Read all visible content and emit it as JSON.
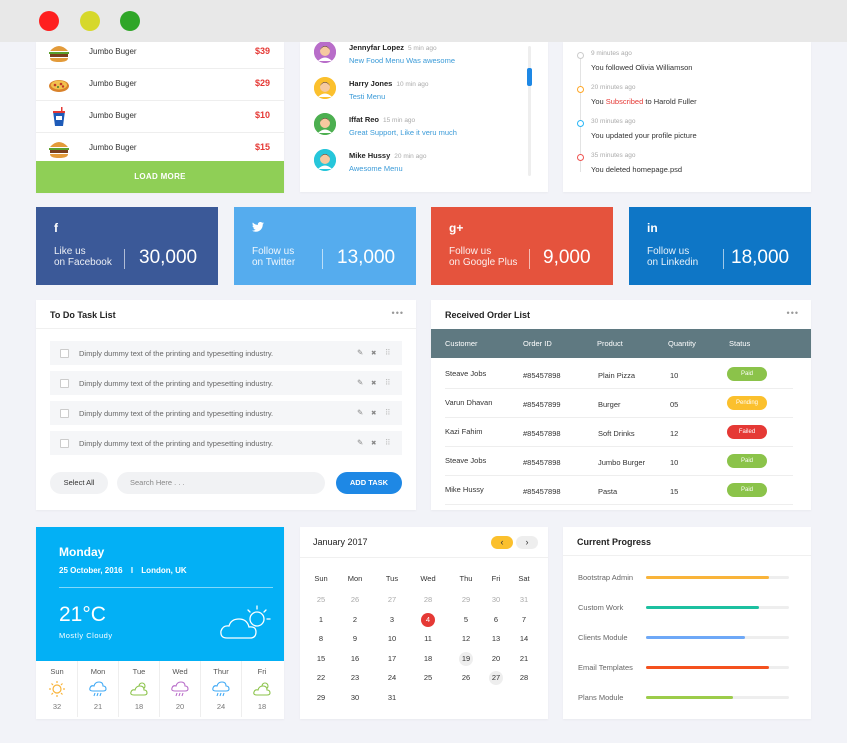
{
  "window": {
    "controls": [
      {
        "name": "close",
        "color": "#fe1f1f"
      },
      {
        "name": "minimize",
        "color": "#d6d82b"
      },
      {
        "name": "maximize",
        "color": "#2fa628"
      }
    ]
  },
  "food_list": {
    "items": [
      {
        "name": "Jumbo Buger",
        "price": "$39",
        "icon": "burger-icon"
      },
      {
        "name": "Jumbo Buger",
        "price": "$29",
        "icon": "pizza-icon"
      },
      {
        "name": "Jumbo Buger",
        "price": "$10",
        "icon": "soda-cup-icon"
      },
      {
        "name": "Jumbo Buger",
        "price": "$15",
        "icon": "burger-icon"
      }
    ],
    "load_more_label": "LOAD MORE",
    "accent": "#8fcf56"
  },
  "messages": [
    {
      "name": "Jennyfar Lopez",
      "time": "5 min ago",
      "text": "New Food Menu Was awesome",
      "avatar_color": "#b86dc9"
    },
    {
      "name": "Harry Jones",
      "time": "10 min ago",
      "text": "Testi Menu",
      "avatar_color": "#fbc02d"
    },
    {
      "name": "Iffat Reo",
      "time": "15 min ago",
      "text": "Great Support, Like it veru much",
      "avatar_color": "#4caf50"
    },
    {
      "name": "Mike Hussy",
      "time": "20 min ago",
      "text": "Awesome Menu",
      "avatar_color": "#26c6da"
    }
  ],
  "timeline": [
    {
      "time": "9 minutes ago",
      "pre": "You followed Olivia Williamson",
      "hl": "",
      "post": "",
      "dot": "#cccccc"
    },
    {
      "time": "20 minutes ago",
      "pre": "You ",
      "hl": "Subscribed",
      "post": " to Harold Fuller",
      "dot": "#ffa726"
    },
    {
      "time": "30 minutes ago",
      "pre": "You updated your profile picture",
      "hl": "",
      "post": "",
      "dot": "#29b6f6"
    },
    {
      "time": "35 minutes ago",
      "pre": "You deleted homepage.psd",
      "hl": "",
      "post": "",
      "dot": "#ef5350"
    }
  ],
  "social": [
    {
      "icon": "f",
      "icon_name": "facebook-icon",
      "label1": "Like us",
      "label2": "on Facebook",
      "value": "30,000",
      "color": "#3b5998"
    },
    {
      "icon": "🐦",
      "icon_name": "twitter-icon",
      "label1": "Follow us",
      "label2": "on Twitter",
      "value": "13,000",
      "color": "#55acee"
    },
    {
      "icon": "g+",
      "icon_name": "google-plus-icon",
      "label1": "Follow us",
      "label2": "on Google Plus",
      "value": "9,000",
      "color": "#e5533d"
    },
    {
      "icon": "in",
      "icon_name": "linkedin-icon",
      "label1": "Follow us",
      "label2": "on Linkedin",
      "value": "18,000",
      "color": "#0e76c6"
    }
  ],
  "todo": {
    "title": "To Do Task List",
    "more": "•••",
    "tasks": [
      "Dimply dummy text of the printing and typesetting industry.",
      "Dimply dummy text of the printing and typesetting industry.",
      "Dimply dummy text of the printing and typesetting industry.",
      "Dimply dummy text of the printing and typesetting industry."
    ],
    "select_all": "Select All",
    "search_placeholder": "Search Here . . .",
    "add_task": "ADD TASK"
  },
  "orders": {
    "title": "Received Order List",
    "more": "•••",
    "columns": [
      "Customer",
      "Order ID",
      "Product",
      "Quantity",
      "Status"
    ],
    "rows": [
      {
        "customer": "Steave Jobs",
        "order_id": "#85457898",
        "product": "Plain Pizza",
        "quantity": "10",
        "status": "Paid",
        "status_color": "#8bc34a"
      },
      {
        "customer": "Varun Dhavan",
        "order_id": "#85457899",
        "product": "Burger",
        "quantity": "05",
        "status": "Pending",
        "status_color": "#fbc02d"
      },
      {
        "customer": "Kazi Fahim",
        "order_id": "#85457898",
        "product": "Soft Drinks",
        "quantity": "12",
        "status": "Failed",
        "status_color": "#e53935"
      },
      {
        "customer": "Steave Jobs",
        "order_id": "#85457898",
        "product": "Jumbo Burger",
        "quantity": "10",
        "status": "Paid",
        "status_color": "#8bc34a"
      },
      {
        "customer": "Mike Hussy",
        "order_id": "#85457898",
        "product": "Pasta",
        "quantity": "15",
        "status": "Paid",
        "status_color": "#8bc34a"
      }
    ]
  },
  "weather": {
    "day": "Monday",
    "date": "25 October, 2016",
    "separator": "I",
    "location": "London, UK",
    "temp": "21°C",
    "condition": "Mostly Cloudy",
    "accent": "#03b0f5",
    "forecast": [
      {
        "day": "Sun",
        "temp": "32",
        "icon": "sun-icon"
      },
      {
        "day": "Mon",
        "temp": "21",
        "icon": "rain-cloud-icon"
      },
      {
        "day": "Tue",
        "temp": "18",
        "icon": "cloud-sun-icon"
      },
      {
        "day": "Wed",
        "temp": "20",
        "icon": "rain-cloud-icon"
      },
      {
        "day": "Thur",
        "temp": "24",
        "icon": "rain-cloud-icon"
      },
      {
        "day": "Fri",
        "temp": "18",
        "icon": "cloud-sun-icon"
      }
    ]
  },
  "calendar": {
    "title": "January 2017",
    "prev": "‹",
    "next": "›",
    "weekdays": [
      "Sun",
      "Mon",
      "Tus",
      "Wed",
      "Thu",
      "Fri",
      "Sat"
    ],
    "weeks": [
      [
        {
          "d": "25",
          "m": true
        },
        {
          "d": "26",
          "m": true
        },
        {
          "d": "27",
          "m": true
        },
        {
          "d": "28",
          "m": true
        },
        {
          "d": "29",
          "m": true
        },
        {
          "d": "30",
          "m": true
        },
        {
          "d": "31",
          "m": true
        }
      ],
      [
        {
          "d": "1"
        },
        {
          "d": "2"
        },
        {
          "d": "3"
        },
        {
          "d": "4",
          "today": true
        },
        {
          "d": "5"
        },
        {
          "d": "6"
        },
        {
          "d": "7"
        }
      ],
      [
        {
          "d": "8"
        },
        {
          "d": "9"
        },
        {
          "d": "10"
        },
        {
          "d": "11"
        },
        {
          "d": "12"
        },
        {
          "d": "13"
        },
        {
          "d": "14"
        }
      ],
      [
        {
          "d": "15"
        },
        {
          "d": "16"
        },
        {
          "d": "17"
        },
        {
          "d": "18"
        },
        {
          "d": "19",
          "mark": true
        },
        {
          "d": "20"
        },
        {
          "d": "21"
        }
      ],
      [
        {
          "d": "22"
        },
        {
          "d": "23"
        },
        {
          "d": "24"
        },
        {
          "d": "25"
        },
        {
          "d": "26"
        },
        {
          "d": "27",
          "mark": true
        },
        {
          "d": "28"
        }
      ],
      [
        {
          "d": "29"
        },
        {
          "d": "30"
        },
        {
          "d": "31"
        }
      ]
    ]
  },
  "progress": {
    "title": "Current Progress",
    "items": [
      {
        "label": "Bootstrap Admin",
        "value": 0.86,
        "color": "#f9b43a"
      },
      {
        "label": "Custom Work",
        "value": 0.79,
        "color": "#1cc0a0"
      },
      {
        "label": "Clients Module",
        "value": 0.69,
        "color": "#6ea8f7"
      },
      {
        "label": "Email Templates",
        "value": 0.86,
        "color": "#f4511e"
      },
      {
        "label": "Plans Module",
        "value": 0.61,
        "color": "#9ccc4a"
      }
    ]
  }
}
